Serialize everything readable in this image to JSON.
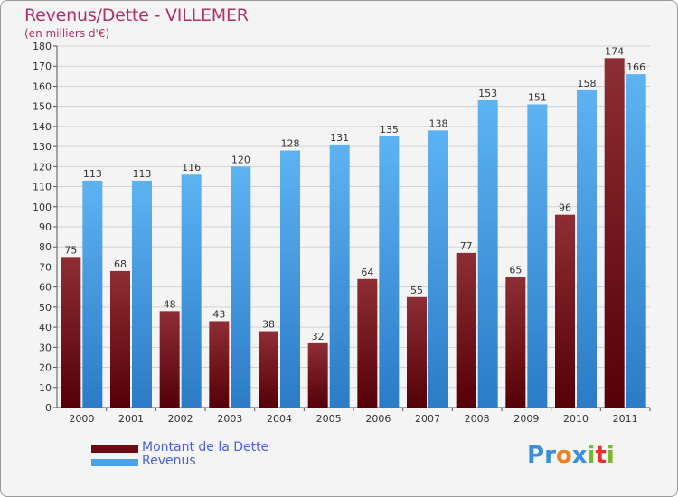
{
  "title": "Revenus/Dette - VILLEMER",
  "subtitle": "(en milliers d'€)",
  "chart_data": {
    "type": "bar",
    "title": "Revenus/Dette - VILLEMER",
    "subtitle": "(en milliers d'€)",
    "categories": [
      "2000",
      "2001",
      "2002",
      "2003",
      "2004",
      "2005",
      "2006",
      "2007",
      "2008",
      "2009",
      "2010",
      "2011"
    ],
    "series": [
      {
        "name": "Montant de la Dette",
        "values": [
          75,
          68,
          48,
          43,
          38,
          32,
          64,
          55,
          77,
          65,
          96,
          174
        ]
      },
      {
        "name": "Revenus",
        "values": [
          113,
          113,
          116,
          120,
          128,
          131,
          135,
          138,
          153,
          151,
          158,
          166
        ]
      }
    ],
    "ylim": [
      0,
      180
    ],
    "ytick_step": 10,
    "grid": true,
    "legend_position": "bottom-left"
  },
  "legend": {
    "items": [
      {
        "label": "Montant de la Dette",
        "color": "#6a0a12"
      },
      {
        "label": "Revenus",
        "color": "#4aa3e8"
      }
    ]
  },
  "colors": {
    "dette_light": "#8a2a30",
    "dette_dark": "#5a0008",
    "revenus_light": "#5fb4f2",
    "revenus_dark": "#2a78c4",
    "title": "#b0306a"
  },
  "logo": {
    "letters": [
      "P",
      "r",
      "o",
      "x",
      "i",
      "t",
      "i"
    ],
    "colors": [
      "#3a8fd8",
      "#3a8fd8",
      "#f08020",
      "#3a8fd8",
      "#78b830",
      "#e83030",
      "#78b830"
    ]
  }
}
